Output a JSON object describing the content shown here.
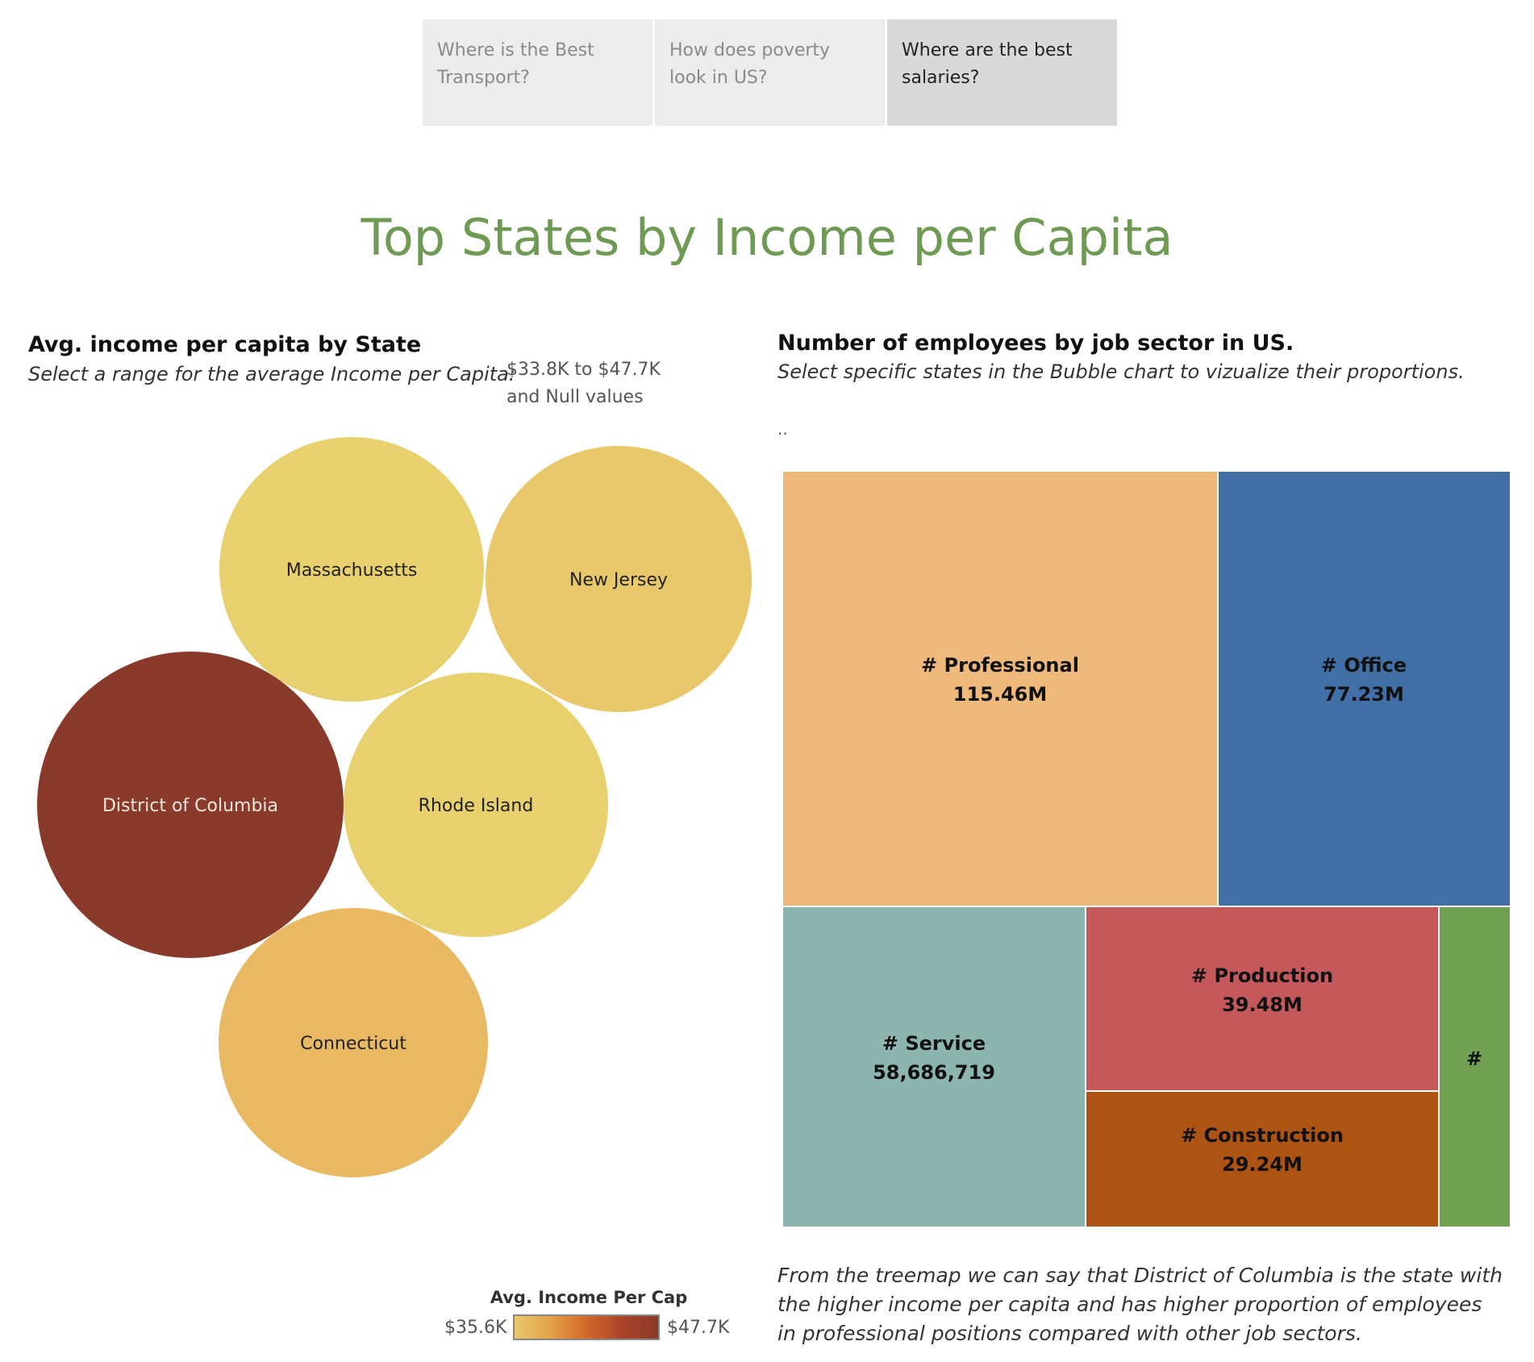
{
  "tabs": [
    {
      "label": "Where is the Best Transport?"
    },
    {
      "label": "How does poverty look in US?"
    },
    {
      "label": "Where are the best salaries?"
    }
  ],
  "title": "Top States by Income per Capita",
  "bubble_section": {
    "title": "Avg. income per capita by State",
    "subtitle": "Select a range for the average Income per Capita:",
    "filter_range": "$33.8K to $47.7K",
    "filter_null": "and Null values"
  },
  "treemap_section": {
    "title": "Number of employees by job sector in US.",
    "subtitle": "Select specific states in the Bubble chart to vizualize their proportions.",
    "dots": ".."
  },
  "legend": {
    "title": "Avg. Income Per Cap",
    "min": "$35.6K",
    "max": "$47.7K"
  },
  "note": "From the treemap we can say that District of Columbia is the state with the higher income per capita and has higher proportion of employees in professional positions compared with other  job sectors.",
  "chart_data": [
    {
      "type": "bubble",
      "title": "Avg. income per capita by State",
      "color_metric": "Avg. Income Per Cap",
      "color_range": [
        35600,
        47700
      ],
      "bubbles": [
        {
          "label": "Massachusetts",
          "color": "#e8d06e"
        },
        {
          "label": "New Jersey",
          "color": "#e8c86a"
        },
        {
          "label": "District of Columbia",
          "color": "#8a3a2a"
        },
        {
          "label": "Rhode Island",
          "color": "#e8d06e"
        },
        {
          "label": "Connecticut",
          "color": "#e8b862"
        }
      ]
    },
    {
      "type": "treemap",
      "title": "Number of employees by job sector in US.",
      "items": [
        {
          "label": "# Professional",
          "value_label": "115.46M",
          "value": 115460000,
          "color": "#efb97c"
        },
        {
          "label": "# Office",
          "value_label": "77.23M",
          "value": 77230000,
          "color": "#4170a7"
        },
        {
          "label": "# Service",
          "value_label": "58,686,719",
          "value": 58686719,
          "color": "#8db5b0"
        },
        {
          "label": "# Production",
          "value_label": "39.48M",
          "value": 39480000,
          "color": "#c5585a"
        },
        {
          "label": "# Construction",
          "value_label": "29.24M",
          "value": 29240000,
          "color": "#ad5313"
        },
        {
          "label": "#",
          "value_label": "",
          "color": "#72a153"
        }
      ]
    }
  ]
}
